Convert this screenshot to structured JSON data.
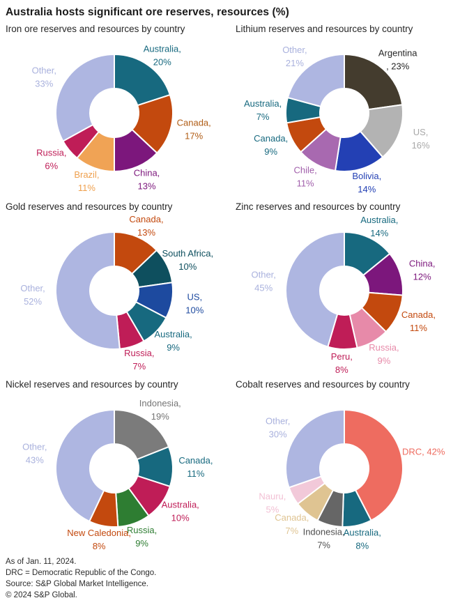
{
  "title": "Australia hosts significant ore reserves, resources (%)",
  "footer": {
    "asof": "As of Jan. 11, 2024.",
    "drc": "DRC = Democratic Republic of the Congo.",
    "source": "Source: S&P Global Market Intelligence.",
    "copyright": "© 2024 S&P Global."
  },
  "chart_data": [
    {
      "type": "pie",
      "variant": "donut",
      "title": "Iron ore reserves and resources by country",
      "legend": "labels-outside",
      "slices": [
        {
          "name": "Australia",
          "value": 20,
          "color": "#17697f",
          "label_color": "#17697f",
          "label_lines": [
            "Australia,",
            "20%"
          ]
        },
        {
          "name": "Canada",
          "value": 17,
          "color": "#c3490e",
          "label_color": "#b05c14",
          "label_lines": [
            "Canada,",
            "17%"
          ]
        },
        {
          "name": "China",
          "value": 13,
          "color": "#7c177c",
          "label_color": "#7c177c",
          "label_lines": [
            "China,",
            "13%"
          ]
        },
        {
          "name": "Brazil",
          "value": 11,
          "color": "#f0a355",
          "label_color": "#efa04e",
          "label_lines": [
            "Brazil,",
            "11%"
          ]
        },
        {
          "name": "Russia",
          "value": 6,
          "color": "#bf1d57",
          "label_color": "#bf1d57",
          "label_lines": [
            "Russia,",
            "6%"
          ]
        },
        {
          "name": "Other",
          "value": 33,
          "color": "#aeb6e1",
          "label_color": "#a9b1dd",
          "label_lines": [
            "Other,",
            "33%"
          ]
        }
      ]
    },
    {
      "type": "pie",
      "variant": "donut",
      "title": "Lithium reserves and resources by country",
      "legend": "labels-outside",
      "slices": [
        {
          "name": "Argentina",
          "value": 23,
          "color": "#443c2e",
          "label_color": "#262626",
          "label_lines": [
            "Argentina",
            ", 23%"
          ]
        },
        {
          "name": "US",
          "value": 16,
          "color": "#b3b3b3",
          "label_color": "#a8a8a8",
          "label_lines": [
            "US,",
            "16%"
          ]
        },
        {
          "name": "Bolivia",
          "value": 14,
          "color": "#2340b4",
          "label_color": "#2340b4",
          "label_lines": [
            "Bolivia,",
            "14%"
          ]
        },
        {
          "name": "Chile",
          "value": 11,
          "color": "#a869b0",
          "label_color": "#a15fab",
          "label_lines": [
            "Chile,",
            "11%"
          ]
        },
        {
          "name": "Canada",
          "value": 9,
          "color": "#c3490e",
          "label_color": "#17697f",
          "label_lines": [
            "Canada,",
            "9%"
          ]
        },
        {
          "name": "Australia",
          "value": 7,
          "color": "#17697f",
          "label_color": "#17697f",
          "label_lines": [
            "Australia,",
            "7%"
          ]
        },
        {
          "name": "Other",
          "value": 21,
          "color": "#aeb6e1",
          "label_color": "#a9b1dd",
          "label_lines": [
            "Other,",
            "21%"
          ]
        }
      ]
    },
    {
      "type": "pie",
      "variant": "donut",
      "title": "Gold reserves and resources by country",
      "legend": "labels-outside",
      "slices": [
        {
          "name": "Canada",
          "value": 13,
          "color": "#c3490e",
          "label_color": "#c3490e",
          "label_lines": [
            "Canada,",
            "13%"
          ]
        },
        {
          "name": "South Africa",
          "value": 10,
          "color": "#0e4f5e",
          "label_color": "#0e4f5e",
          "label_lines": [
            "South Africa,",
            "10%"
          ]
        },
        {
          "name": "US",
          "value": 10,
          "color": "#1d4a9f",
          "label_color": "#1d4a9f",
          "label_lines": [
            "US,",
            "10%"
          ]
        },
        {
          "name": "Australia",
          "value": 9,
          "color": "#17697f",
          "label_color": "#17697f",
          "label_lines": [
            "Australia,",
            "9%"
          ]
        },
        {
          "name": "Russia",
          "value": 7,
          "color": "#bf1d57",
          "label_color": "#bf1d57",
          "label_lines": [
            "Russia,",
            "7%"
          ]
        },
        {
          "name": "Other",
          "value": 52,
          "color": "#aeb6e1",
          "label_color": "#a9b1dd",
          "label_lines": [
            "Other,",
            "52%"
          ]
        }
      ]
    },
    {
      "type": "pie",
      "variant": "donut",
      "title": "Zinc reserves and resources by country",
      "legend": "labels-outside",
      "slices": [
        {
          "name": "Australia",
          "value": 14,
          "color": "#17697f",
          "label_color": "#17697f",
          "label_lines": [
            "Australia,",
            "14%"
          ]
        },
        {
          "name": "China",
          "value": 12,
          "color": "#7c177c",
          "label_color": "#7c177c",
          "label_lines": [
            "China,",
            "12%"
          ]
        },
        {
          "name": "Canada",
          "value": 11,
          "color": "#c3490e",
          "label_color": "#c3490e",
          "label_lines": [
            "Canada,",
            "11%"
          ]
        },
        {
          "name": "Russia",
          "value": 9,
          "color": "#e78aa9",
          "label_color": "#e78aa9",
          "label_lines": [
            "Russia,",
            "9%"
          ]
        },
        {
          "name": "Peru",
          "value": 8,
          "color": "#bf1d57",
          "label_color": "#bf1d57",
          "label_lines": [
            "Peru,",
            "8%"
          ]
        },
        {
          "name": "Other",
          "value": 45,
          "color": "#aeb6e1",
          "label_color": "#a9b1dd",
          "label_lines": [
            "Other,",
            "45%"
          ]
        }
      ]
    },
    {
      "type": "pie",
      "variant": "donut",
      "title": "Nickel reserves and resources by country",
      "legend": "labels-outside",
      "slices": [
        {
          "name": "Indonesia",
          "value": 19,
          "color": "#7b7b7b",
          "label_color": "#757575",
          "label_lines": [
            "Indonesia,",
            "19%"
          ]
        },
        {
          "name": "Canada",
          "value": 11,
          "color": "#17697f",
          "label_color": "#17697f",
          "label_lines": [
            "Canada,",
            "11%"
          ]
        },
        {
          "name": "Australia",
          "value": 10,
          "color": "#bf1d57",
          "label_color": "#bf1d57",
          "label_lines": [
            "Australia,",
            "10%"
          ]
        },
        {
          "name": "Russia",
          "value": 9,
          "color": "#2e7d32",
          "label_color": "#2e7d32",
          "label_lines": [
            "Russia,",
            "9%"
          ]
        },
        {
          "name": "New Caledonia",
          "value": 8,
          "color": "#c3490e",
          "label_color": "#c3490e",
          "label_lines": [
            "New Caledonia,",
            "8%"
          ]
        },
        {
          "name": "Other",
          "value": 43,
          "color": "#aeb6e1",
          "label_color": "#a9b1dd",
          "label_lines": [
            "Other,",
            "43%"
          ]
        }
      ]
    },
    {
      "type": "pie",
      "variant": "donut",
      "title": "Cobalt reserves and resources by country",
      "legend": "labels-outside",
      "slices": [
        {
          "name": "DRC",
          "value": 42,
          "color": "#ee6c60",
          "label_color": "#ee6c60",
          "label_lines": [
            "DRC, 42%"
          ]
        },
        {
          "name": "Australia",
          "value": 8,
          "color": "#17697f",
          "label_color": "#17697f",
          "label_lines": [
            "Australia,",
            "8%"
          ]
        },
        {
          "name": "Indonesia",
          "value": 7,
          "color": "#666666",
          "label_color": "#4f4f4f",
          "label_lines": [
            "Indonesia,",
            "7%"
          ]
        },
        {
          "name": "Canada",
          "value": 7,
          "color": "#dfc492",
          "label_color": "#dfc492",
          "label_lines": [
            "Canada,",
            "7%"
          ]
        },
        {
          "name": "Nauru",
          "value": 5,
          "color": "#f2c9d9",
          "label_color": "#f2c0d4",
          "label_lines": [
            "Nauru,",
            "5%"
          ]
        },
        {
          "name": "Other",
          "value": 30,
          "color": "#aeb6e1",
          "label_color": "#a9b1dd",
          "label_lines": [
            "Other,",
            "30%"
          ]
        }
      ]
    }
  ]
}
